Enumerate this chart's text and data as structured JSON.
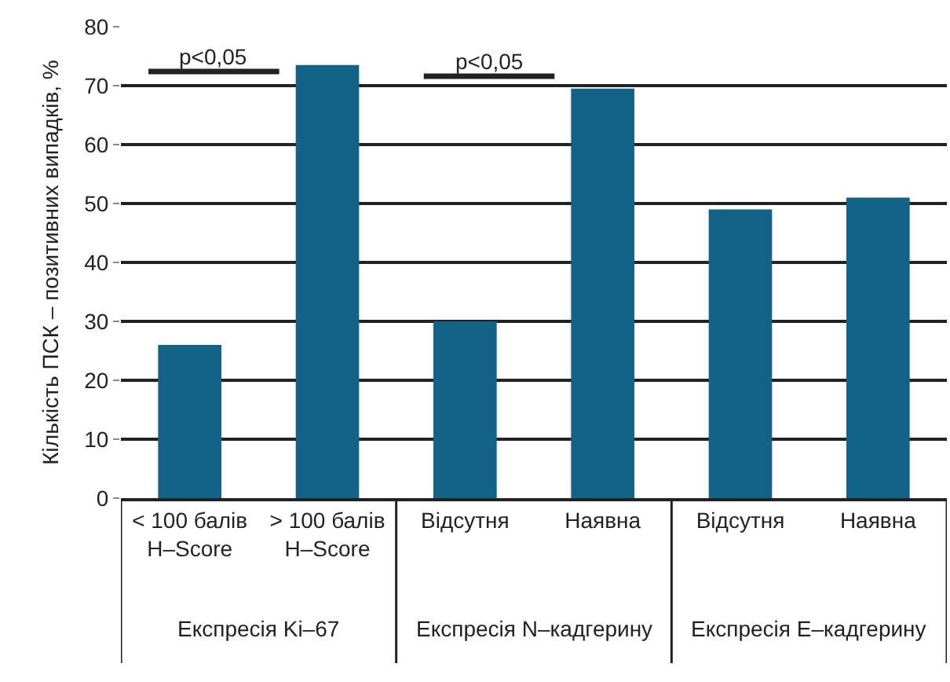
{
  "chart_data": {
    "type": "bar",
    "ylabel": "Кількість ПСК – позитивних випадків, %",
    "categories": [
      "< 100 балів\nH–Score",
      "> 100 балів\nH–Score",
      "Відсутня",
      "Наявна",
      "Відсутня",
      "Наявна"
    ],
    "values": [
      26,
      73.5,
      30,
      69.5,
      49,
      51
    ],
    "color": "#126387",
    "ylim": [
      0,
      80
    ],
    "yticks": [
      0,
      10,
      20,
      30,
      40,
      50,
      60,
      70,
      80
    ],
    "grid": "y",
    "annotations": [
      "p<0,05",
      "p<0,05",
      "Експресія Ki–67",
      "Експресія N–кадгерину",
      "Експресія E–кадгерину"
    ]
  }
}
